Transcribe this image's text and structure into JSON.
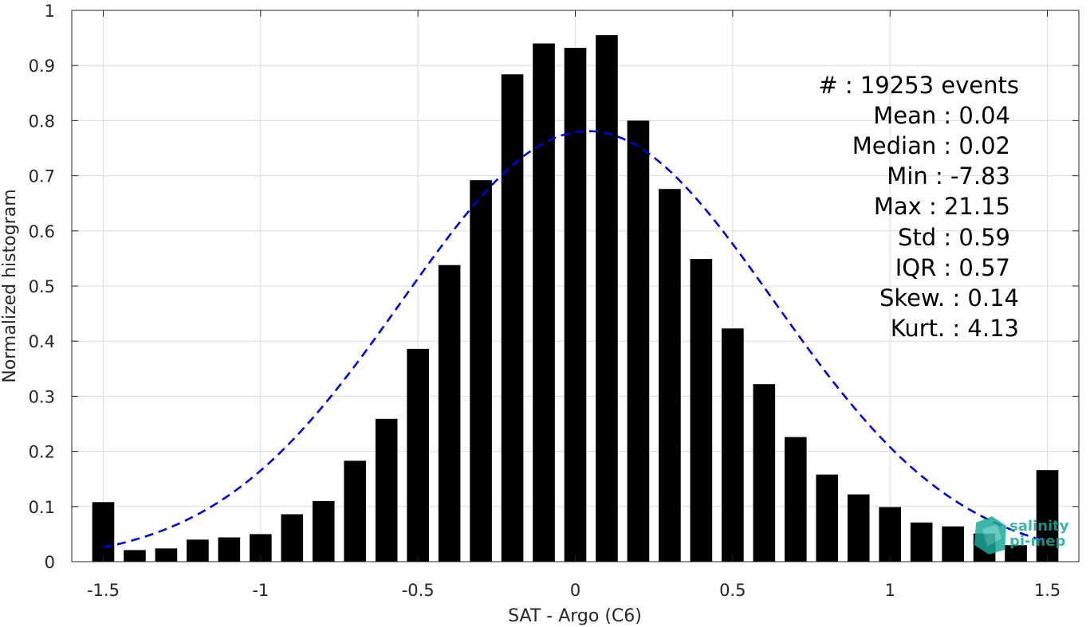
{
  "chart_data": {
    "type": "bar",
    "xlabel": "SAT - Argo (C6)",
    "ylabel": "Normalized histogram",
    "xlim": [
      -1.6,
      1.6
    ],
    "ylim": [
      0,
      1
    ],
    "xticks": [
      -1.5,
      -1,
      -0.5,
      0,
      0.5,
      1,
      1.5
    ],
    "xtick_labels": [
      "-1.5",
      "-1",
      "-0.5",
      "0",
      "0.5",
      "1",
      "1.5"
    ],
    "yticks": [
      0,
      0.1,
      0.2,
      0.3,
      0.4,
      0.5,
      0.6,
      0.7,
      0.8,
      0.9,
      1
    ],
    "ytick_labels": [
      "0",
      "0.1",
      "0.2",
      "0.3",
      "0.4",
      "0.5",
      "0.6",
      "0.7",
      "0.8",
      "0.9",
      "1"
    ],
    "grid": true,
    "bar_width": 0.07,
    "bar_color": "#000000",
    "x": [
      -1.5,
      -1.4,
      -1.3,
      -1.2,
      -1.1,
      -1.0,
      -0.9,
      -0.8,
      -0.7,
      -0.6,
      -0.5,
      -0.4,
      -0.3,
      -0.2,
      -0.1,
      0.0,
      0.1,
      0.2,
      0.3,
      0.4,
      0.5,
      0.6,
      0.7,
      0.8,
      0.9,
      1.0,
      1.1,
      1.2,
      1.3,
      1.4,
      1.5
    ],
    "values": [
      0.108,
      0.021,
      0.024,
      0.04,
      0.044,
      0.05,
      0.086,
      0.11,
      0.183,
      0.259,
      0.386,
      0.538,
      0.692,
      0.884,
      0.94,
      0.932,
      0.955,
      0.8,
      0.676,
      0.549,
      0.423,
      0.322,
      0.226,
      0.158,
      0.122,
      0.099,
      0.071,
      0.064,
      0.051,
      0.03,
      0.166
    ],
    "fit_curve": {
      "style": "dashed",
      "color": "#0000dd",
      "mean": 0.04,
      "std": 0.59,
      "peak": 0.781,
      "x_range": [
        -1.5,
        1.5
      ]
    }
  },
  "stats": [
    {
      "label": "#  : 19253 events"
    },
    {
      "label": "Mean : 0.04"
    },
    {
      "label": "Median : 0.02"
    },
    {
      "label": "Min : -7.83"
    },
    {
      "label": "Max : 21.15"
    },
    {
      "label": "Std : 0.59"
    },
    {
      "label": "IQR : 0.57"
    },
    {
      "label": "Skew. : 0.14"
    },
    {
      "label": "Kurt. : 4.13"
    }
  ],
  "logo": {
    "line1": "salinity",
    "line2": "pi-mep",
    "color": "#1aa99a"
  }
}
